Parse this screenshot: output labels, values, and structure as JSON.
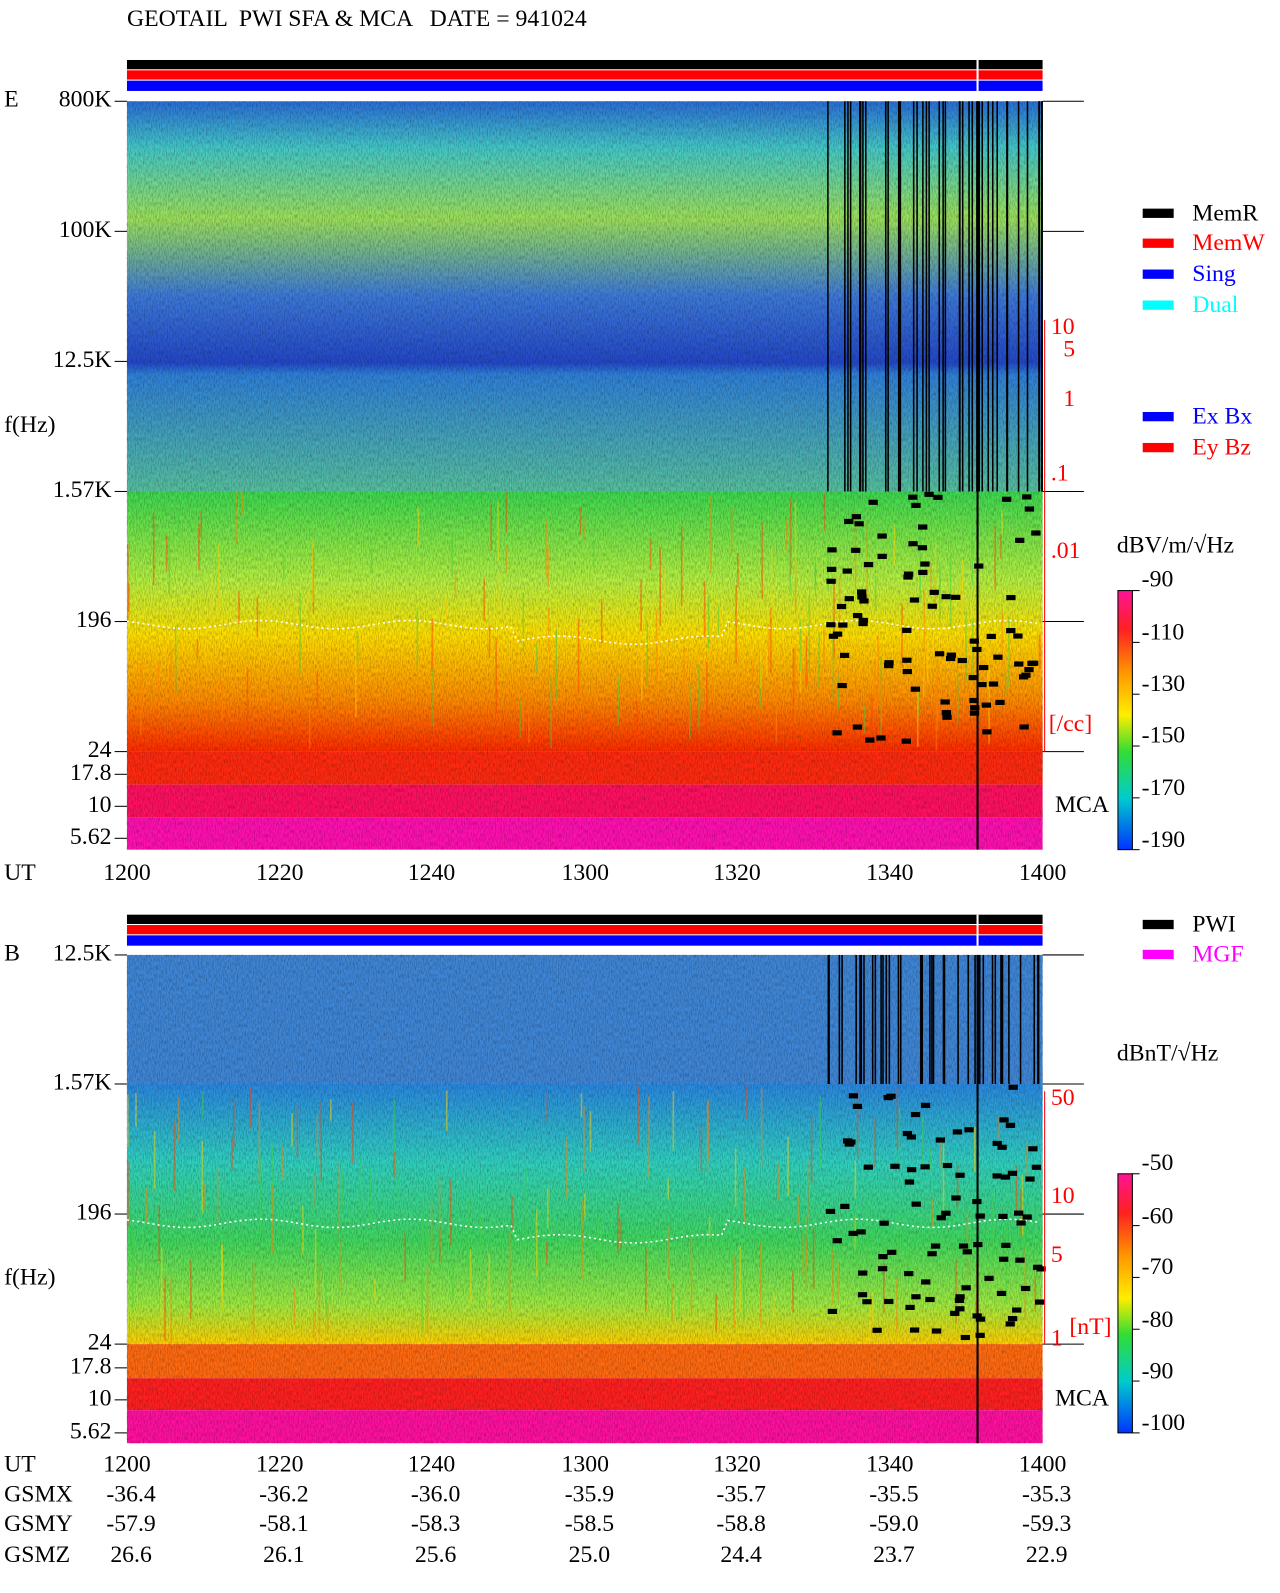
{
  "title": "GEOTAIL  PWI SFA & MCA   DATE = 941024",
  "panels": [
    {
      "label": "E",
      "y_axis_label": "f(Hz)",
      "y_ticks": [
        "800K",
        "100K",
        "12.5K",
        "1.57K",
        "196",
        "24",
        "17.8",
        "10",
        "5.62"
      ],
      "x_axis_label": "UT",
      "x_ticks": [
        "1200",
        "1220",
        "1240",
        "1300",
        "1320",
        "1340",
        "1400"
      ],
      "density_scale": [
        "10",
        "5",
        "1",
        ".1",
        ".01",
        "[/cc]"
      ],
      "mca_label": "MCA",
      "legend": [
        {
          "name": "MemR",
          "color": "#000000"
        },
        {
          "name": "MemW",
          "color": "#ff0000"
        },
        {
          "name": "Sing",
          "color": "#0000ff"
        },
        {
          "name": "Dual",
          "color": "#00ffff"
        },
        {
          "name": "Ex Bx",
          "color": "#0000ff"
        },
        {
          "name": "Ey Bz",
          "color": "#ff0000"
        }
      ],
      "colorbar": {
        "unit": "dBV/m/√Hz",
        "ticks": [
          "-90",
          "-110",
          "-130",
          "-150",
          "-170",
          "-190"
        ]
      }
    },
    {
      "label": "B",
      "y_axis_label": "f(Hz)",
      "y_ticks": [
        "12.5K",
        "1.57K",
        "196",
        "24",
        "17.8",
        "10",
        "5.62"
      ],
      "x_axis_label": "UT",
      "x_ticks": [
        "1200",
        "1220",
        "1240",
        "1300",
        "1320",
        "1340",
        "1400"
      ],
      "density_scale": [
        "50",
        "10",
        "5",
        "1",
        "[nT]"
      ],
      "mca_label": "MCA",
      "legend": [
        {
          "name": "PWI",
          "color": "#000000"
        },
        {
          "name": "MGF",
          "color": "#ff00ff"
        }
      ],
      "colorbar": {
        "unit": "dBnT/√Hz",
        "ticks": [
          "-50",
          "-60",
          "-70",
          "-80",
          "-90",
          "-100"
        ]
      }
    }
  ],
  "ephemeris": {
    "rows": [
      {
        "label": "GSMX",
        "values": [
          "-36.4",
          "-36.2",
          "-36.0",
          "-35.9",
          "-35.7",
          "-35.5",
          "-35.3"
        ]
      },
      {
        "label": "GSMY",
        "values": [
          "-57.9",
          "-58.1",
          "-58.3",
          "-58.5",
          "-58.8",
          "-59.0",
          "-59.3"
        ]
      },
      {
        "label": "GSMZ",
        "values": [
          "26.6",
          "26.1",
          "25.6",
          "25.0",
          "24.4",
          "23.7",
          "22.9"
        ]
      }
    ]
  }
}
